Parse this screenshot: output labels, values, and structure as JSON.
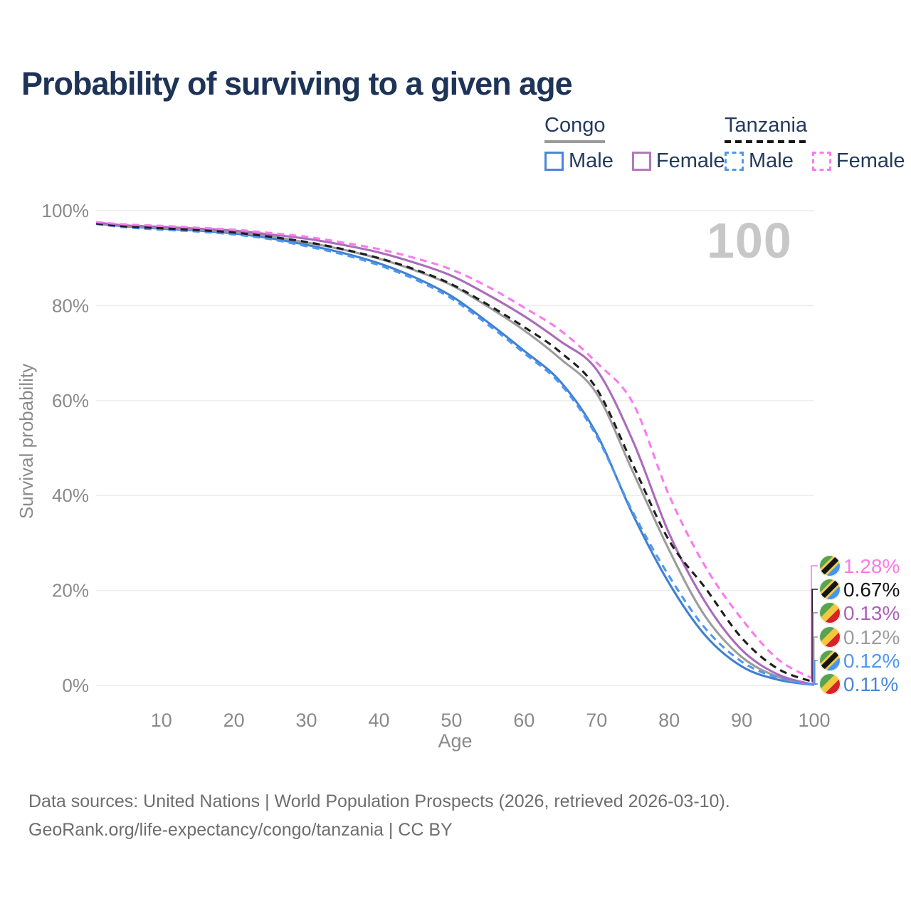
{
  "title": "Probability of surviving to a given age",
  "watermark": "100",
  "legend": {
    "congo": {
      "label": "Congo",
      "male": "Male",
      "female": "Female"
    },
    "tanzania": {
      "label": "Tanzania",
      "male": "Male",
      "female": "Female"
    }
  },
  "footer": {
    "line1": "Data sources: United Nations | World Population Prospects (2026, retrieved 2026-03-10).",
    "line2": "GeoRank.org/life-expectancy/congo/tanzania | CC BY"
  },
  "colors": {
    "title": "#1d3357",
    "axis_text": "#8a8a8a",
    "gridline": "#ebebeb",
    "watermark": "#c7c7c7",
    "congo_underline": "#9b9b9b",
    "tanzania_underline": "#161616"
  },
  "chart_data": {
    "type": "line",
    "title": "Probability of surviving to a given age",
    "xlabel": "Age",
    "ylabel": "Survival probability",
    "xlim": [
      1,
      100
    ],
    "ylim": [
      0,
      100
    ],
    "x_ticks": [
      10,
      20,
      30,
      40,
      50,
      60,
      70,
      80,
      90,
      100
    ],
    "y_ticks": [
      0,
      20,
      40,
      60,
      80,
      100
    ],
    "y_tick_suffix": "%",
    "grid": "horizontal-only",
    "legend_position": "top-right",
    "series": [
      {
        "id": "congo-male",
        "country": "Congo",
        "sex": "Male",
        "style": "solid",
        "color": "#3f80d2",
        "flag": "congo",
        "end_label": "0.11%",
        "end_label_color": "#4a86d8",
        "points": [
          [
            1,
            97.3
          ],
          [
            5,
            96.7
          ],
          [
            10,
            96.2
          ],
          [
            15,
            95.8
          ],
          [
            20,
            95.2
          ],
          [
            25,
            94.2
          ],
          [
            30,
            92.8
          ],
          [
            35,
            91.1
          ],
          [
            40,
            88.9
          ],
          [
            45,
            85.9
          ],
          [
            50,
            82.0
          ],
          [
            55,
            76.5
          ],
          [
            60,
            70.5
          ],
          [
            65,
            64.0
          ],
          [
            70,
            53.0
          ],
          [
            75,
            36.0
          ],
          [
            80,
            21.5
          ],
          [
            85,
            10.5
          ],
          [
            90,
            4.0
          ],
          [
            95,
            1.2
          ],
          [
            100,
            0.11
          ]
        ]
      },
      {
        "id": "congo-both",
        "country": "Congo",
        "sex": "Both sexes",
        "style": "solid",
        "color": "#9c9c9c",
        "flag": "congo",
        "end_label": "0.12%",
        "end_label_color": "#9d9d9d",
        "points": [
          [
            1,
            97.4
          ],
          [
            5,
            96.8
          ],
          [
            10,
            96.4
          ],
          [
            15,
            96.0
          ],
          [
            20,
            95.5
          ],
          [
            25,
            94.6
          ],
          [
            30,
            93.3
          ],
          [
            35,
            91.8
          ],
          [
            40,
            89.9
          ],
          [
            45,
            87.4
          ],
          [
            50,
            84.3
          ],
          [
            55,
            79.8
          ],
          [
            60,
            74.8
          ],
          [
            65,
            68.8
          ],
          [
            70,
            61.5
          ],
          [
            75,
            45.0
          ],
          [
            80,
            28.5
          ],
          [
            85,
            14.5
          ],
          [
            90,
            6.0
          ],
          [
            95,
            1.8
          ],
          [
            100,
            0.12
          ]
        ]
      },
      {
        "id": "congo-female",
        "country": "Congo",
        "sex": "Female",
        "style": "solid",
        "color": "#ab6bba",
        "flag": "congo",
        "end_label": "0.13%",
        "end_label_color": "#b060b8",
        "points": [
          [
            1,
            97.5
          ],
          [
            5,
            96.9
          ],
          [
            10,
            96.6
          ],
          [
            15,
            96.2
          ],
          [
            20,
            95.8
          ],
          [
            25,
            95.0
          ],
          [
            30,
            94.1
          ],
          [
            35,
            92.8
          ],
          [
            40,
            91.2
          ],
          [
            45,
            89.0
          ],
          [
            50,
            86.3
          ],
          [
            55,
            82.3
          ],
          [
            60,
            77.8
          ],
          [
            65,
            72.5
          ],
          [
            70,
            66.5
          ],
          [
            75,
            51.5
          ],
          [
            80,
            32.0
          ],
          [
            85,
            17.5
          ],
          [
            90,
            7.5
          ],
          [
            95,
            2.3
          ],
          [
            100,
            0.13
          ]
        ]
      },
      {
        "id": "tanzania-male",
        "country": "Tanzania",
        "sex": "Male",
        "style": "dashed",
        "color": "#4f97f1",
        "flag": "tanzania",
        "end_label": "0.12%",
        "end_label_color": "#4f97f1",
        "points": [
          [
            1,
            97.2
          ],
          [
            5,
            96.5
          ],
          [
            10,
            96.0
          ],
          [
            15,
            95.6
          ],
          [
            20,
            95.0
          ],
          [
            25,
            94.0
          ],
          [
            30,
            92.5
          ],
          [
            35,
            90.8
          ],
          [
            40,
            88.5
          ],
          [
            45,
            85.5
          ],
          [
            50,
            81.5
          ],
          [
            55,
            76.0
          ],
          [
            60,
            70.0
          ],
          [
            65,
            63.5
          ],
          [
            70,
            52.5
          ],
          [
            75,
            36.5
          ],
          [
            80,
            23.0
          ],
          [
            85,
            12.0
          ],
          [
            90,
            5.0
          ],
          [
            95,
            1.6
          ],
          [
            100,
            0.12
          ]
        ]
      },
      {
        "id": "tanzania-both",
        "country": "Tanzania",
        "sex": "Both sexes",
        "style": "dashed",
        "color": "#1e1e1e",
        "flag": "tanzania",
        "end_label": "0.67%",
        "end_label_color": "#141414",
        "points": [
          [
            1,
            97.3
          ],
          [
            5,
            96.7
          ],
          [
            10,
            96.3
          ],
          [
            15,
            95.9
          ],
          [
            20,
            95.4
          ],
          [
            25,
            94.5
          ],
          [
            30,
            93.4
          ],
          [
            35,
            91.9
          ],
          [
            40,
            90.0
          ],
          [
            45,
            87.6
          ],
          [
            50,
            84.5
          ],
          [
            55,
            80.2
          ],
          [
            60,
            75.5
          ],
          [
            65,
            70.2
          ],
          [
            70,
            62.5
          ],
          [
            75,
            46.5
          ],
          [
            80,
            30.5
          ],
          [
            85,
            20.5
          ],
          [
            90,
            10.0
          ],
          [
            95,
            3.5
          ],
          [
            100,
            0.67
          ]
        ]
      },
      {
        "id": "tanzania-female",
        "country": "Tanzania",
        "sex": "Female",
        "style": "dashed",
        "color": "#fb7aef",
        "flag": "tanzania",
        "end_label": "1.28%",
        "end_label_color": "#fa7ae8",
        "points": [
          [
            1,
            97.6
          ],
          [
            5,
            97.1
          ],
          [
            10,
            96.8
          ],
          [
            15,
            96.4
          ],
          [
            20,
            96.0
          ],
          [
            25,
            95.3
          ],
          [
            30,
            94.5
          ],
          [
            35,
            93.3
          ],
          [
            40,
            91.9
          ],
          [
            45,
            90.0
          ],
          [
            50,
            87.6
          ],
          [
            55,
            84.0
          ],
          [
            60,
            79.6
          ],
          [
            65,
            74.8
          ],
          [
            70,
            68.0
          ],
          [
            75,
            59.5
          ],
          [
            80,
            40.0
          ],
          [
            85,
            25.0
          ],
          [
            90,
            14.0
          ],
          [
            95,
            5.5
          ],
          [
            100,
            1.28
          ]
        ]
      }
    ],
    "end_label_order": [
      "tanzania-female",
      "tanzania-both",
      "congo-female",
      "congo-both",
      "tanzania-male",
      "congo-male"
    ],
    "flag_colors": {
      "congo": {
        "green": "#58a350",
        "yellow": "#f2c83d",
        "red": "#d8222a"
      },
      "tanzania": {
        "green": "#58a350",
        "yellow": "#f6cb4a",
        "black": "#151515",
        "blue": "#4596ec"
      }
    }
  }
}
